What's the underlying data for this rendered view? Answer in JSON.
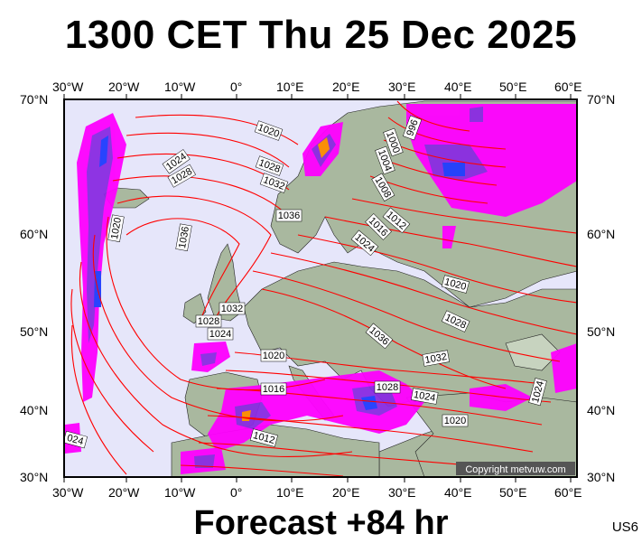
{
  "header": {
    "title": "1300 CET Thu 25 Dec 2025"
  },
  "footer": {
    "forecast_label": "Forecast +84 hr",
    "model_code": "US6"
  },
  "copyright": "Copyright metvuw.com",
  "axes": {
    "lon_labels": [
      "30°W",
      "20°W",
      "10°W",
      "0°",
      "10°E",
      "20°E",
      "30°E",
      "40°E",
      "50°E",
      "60°E"
    ],
    "lat_labels": [
      "70°N",
      "60°N",
      "50°N",
      "40°N",
      "30°N"
    ]
  },
  "isobar_labels": [
    {
      "text": "1020"
    },
    {
      "text": "1024"
    },
    {
      "text": "1028"
    },
    {
      "text": "1020"
    },
    {
      "text": "1028"
    },
    {
      "text": "1032"
    },
    {
      "text": "1036"
    },
    {
      "text": "1036"
    },
    {
      "text": "996"
    },
    {
      "text": "1000"
    },
    {
      "text": "1004"
    },
    {
      "text": "1008"
    },
    {
      "text": "1012"
    },
    {
      "text": "1016"
    },
    {
      "text": "1024"
    },
    {
      "text": "1020"
    },
    {
      "text": "1028"
    },
    {
      "text": "1032"
    },
    {
      "text": "1028"
    },
    {
      "text": "1024"
    },
    {
      "text": "1036"
    },
    {
      "text": "1032"
    },
    {
      "text": "1020"
    },
    {
      "text": "1016"
    },
    {
      "text": "1028"
    },
    {
      "text": "1024"
    },
    {
      "text": "1024"
    },
    {
      "text": "1020"
    },
    {
      "text": "1012"
    },
    {
      "text": "024"
    }
  ],
  "colors": {
    "ocean": "#e6e6fa",
    "land": "#a9b89f",
    "isobar": "#ff0000",
    "precip_light": "#ff00ff",
    "precip_mid": "#8a2be2",
    "precip_heavy": "#1e3cff"
  }
}
